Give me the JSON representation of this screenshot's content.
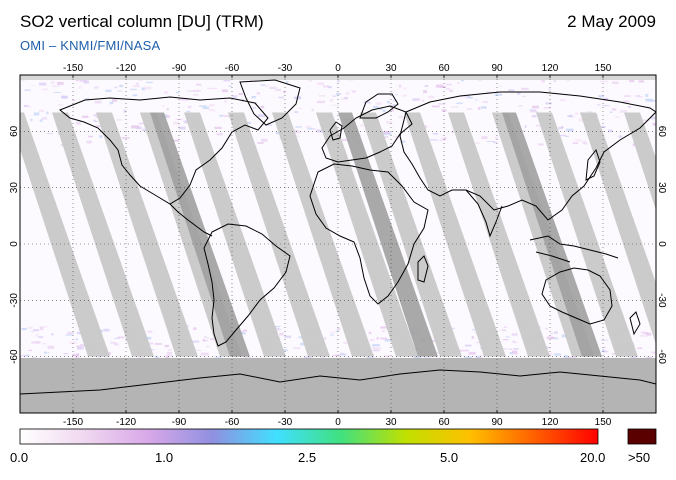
{
  "header": {
    "title": "SO2 vertical column [DU] (TRM)",
    "date": "2 May 2009",
    "source": "OMI  –  KNMI/FMI/NASA"
  },
  "map": {
    "lon_ticks": [
      "-150",
      "-120",
      "-90",
      "-60",
      "-30",
      "0",
      "30",
      "60",
      "90",
      "120",
      "150"
    ],
    "lat_ticks": [
      "60",
      "30",
      "0",
      "-30",
      "-60"
    ],
    "colors": {
      "background": "#fdfaff",
      "swath_gap": "#c8c8c8",
      "swath_dark": "#a0a0a0",
      "polar_fill": "#b4b4b4",
      "coast": "#000000",
      "grid": "#444444"
    }
  },
  "colorbar": {
    "labels": [
      "0.0",
      "1.0",
      "2.5",
      "5.0",
      "20.0"
    ],
    "overflow_label": ">50",
    "overflow_color": "#5a0000",
    "gradient_stops": [
      "#ffffff",
      "#f0d8f0",
      "#d8a8e8",
      "#9090e0",
      "#40e0ff",
      "#40e080",
      "#c0e000",
      "#ffc000",
      "#ff6000",
      "#ff0000"
    ]
  }
}
